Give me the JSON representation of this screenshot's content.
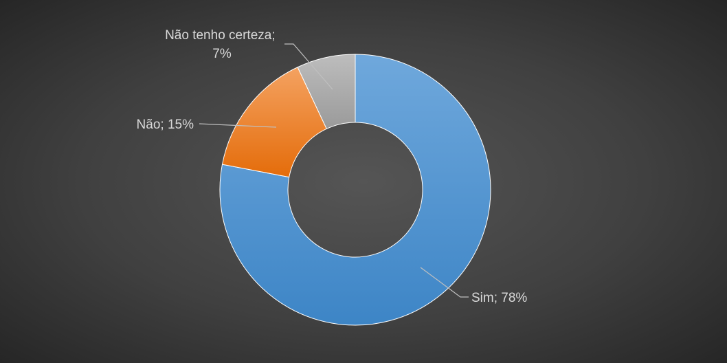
{
  "chart_data": {
    "type": "pie",
    "donut": true,
    "title": "",
    "legend": "none",
    "slices": [
      {
        "label": "Sim",
        "value": 78,
        "color": "#5b9bd5",
        "gradient": [
          "#6fa8dc",
          "#3d85c6"
        ],
        "data_label": "Sim; 78%"
      },
      {
        "label": "Não",
        "value": 15,
        "color": "#ed7d31",
        "gradient": [
          "#f4a261",
          "#e46c0a"
        ],
        "data_label": "Não; 15%"
      },
      {
        "label": "Não tenho certeza",
        "value": 7,
        "color": "#a5a5a5",
        "gradient": [
          "#bdbdbd",
          "#9a9a9a"
        ],
        "data_label_lines": [
          "Não tenho certeza;",
          "7%"
        ]
      }
    ]
  }
}
